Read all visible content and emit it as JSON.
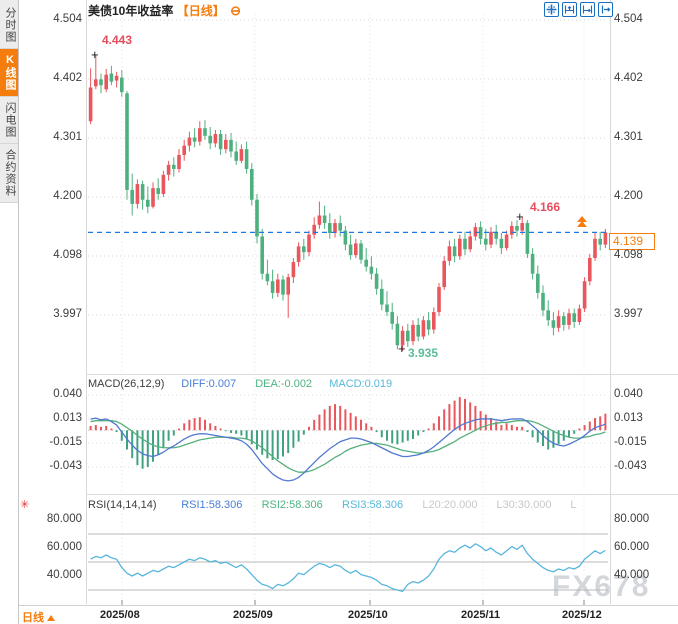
{
  "sidebar": {
    "tabs": [
      {
        "label": "分时图",
        "selected": false
      },
      {
        "label": "K线图",
        "selected": true
      },
      {
        "label": "闪电图",
        "selected": false
      },
      {
        "label": "合约资料",
        "selected": false
      }
    ]
  },
  "header": {
    "title": "美债10年收益率",
    "period_tag": "【日线】",
    "collapse_icon": "⊖"
  },
  "toolbar": {
    "icons": [
      "crosshair",
      "compress-left",
      "compress-right",
      "pan-right"
    ]
  },
  "price_tag": {
    "value": "4.139"
  },
  "annotations": {
    "high_peak": "4.443",
    "recent_high": "4.166",
    "low": "3.935"
  },
  "watermark": "FX678",
  "bottom_bar": {
    "period_label": "日线",
    "months": [
      "2025/08",
      "2025/09",
      "2025/10",
      "2025/11",
      "2025/12"
    ]
  },
  "axes": {
    "main": [
      "4.504",
      "4.402",
      "4.301",
      "4.200",
      "4.098",
      "3.997"
    ],
    "macd": [
      "0.040",
      "0.013",
      "-0.015",
      "-0.043"
    ],
    "rsi": [
      "80.000",
      "60.000",
      "40.000"
    ]
  },
  "legends": {
    "macd": [
      {
        "text": "MACD(26,12,9)",
        "color": "#3c3c3c"
      },
      {
        "text": "DIFF:0.007",
        "color": "#4a7dd4"
      },
      {
        "text": "DEA:-0.002",
        "color": "#4db381"
      },
      {
        "text": "MACD:0.019",
        "color": "#55b9d9"
      }
    ],
    "rsi": [
      {
        "text": "RSI(14,14,14)",
        "color": "#3c3c3c"
      },
      {
        "text": "RSI1:58.306",
        "color": "#4a7dd4"
      },
      {
        "text": "RSI2:58.306",
        "color": "#4db381"
      },
      {
        "text": "RSI3:58.306",
        "color": "#55b9d9"
      },
      {
        "text": "L20:20.000",
        "color": "#c8c8c8"
      },
      {
        "text": "L30:30.000",
        "color": "#c8c8c8"
      },
      {
        "text": "L",
        "color": "#c8c8c8"
      }
    ]
  },
  "colors": {
    "up": "#e8565e",
    "down": "#4eb07e",
    "hist_up": "#e8565e",
    "hist_down": "#3fa182",
    "diff_line": "#5179d0",
    "dea_line": "#55b07c",
    "rsi_line": "#58b6dc",
    "last_price_line": "#1f7ae0",
    "accent": "#f57d0d",
    "toolbar_icon": "#1a6ec0"
  },
  "chart_data": [
    {
      "type": "candlestick",
      "title": "美债10年收益率 日线",
      "x_months": [
        "2025/08",
        "2025/09",
        "2025/10",
        "2025/11",
        "2025/12"
      ],
      "y_ticks": [
        4.504,
        4.402,
        4.301,
        4.2,
        4.098,
        3.997
      ],
      "ylim": [
        3.935,
        4.504
      ],
      "last_price": 4.139,
      "marked_high_1": 4.443,
      "marked_high_2": 4.166,
      "marked_low": 3.935,
      "ohlc": [
        [
          4.33,
          4.421,
          4.325,
          4.388
        ],
        [
          4.39,
          4.443,
          4.385,
          4.402
        ],
        [
          4.402,
          4.412,
          4.378,
          4.392
        ],
        [
          4.385,
          4.42,
          4.38,
          4.41
        ],
        [
          4.412,
          4.425,
          4.392,
          4.398
        ],
        [
          4.4,
          4.415,
          4.388,
          4.408
        ],
        [
          4.405,
          4.418,
          4.372,
          4.38
        ],
        [
          4.378,
          4.382,
          4.195,
          4.212
        ],
        [
          4.212,
          4.24,
          4.168,
          4.188
        ],
        [
          4.188,
          4.23,
          4.18,
          4.222
        ],
        [
          4.222,
          4.228,
          4.178,
          4.195
        ],
        [
          4.195,
          4.218,
          4.172,
          4.183
        ],
        [
          4.183,
          4.225,
          4.18,
          4.215
        ],
        [
          4.215,
          4.232,
          4.195,
          4.205
        ],
        [
          4.205,
          4.245,
          4.2,
          4.238
        ],
        [
          4.238,
          4.262,
          4.228,
          4.255
        ],
        [
          4.255,
          4.268,
          4.235,
          4.248
        ],
        [
          4.248,
          4.282,
          4.242,
          4.272
        ],
        [
          4.272,
          4.298,
          4.262,
          4.288
        ],
        [
          4.288,
          4.312,
          4.278,
          4.302
        ],
        [
          4.302,
          4.318,
          4.285,
          4.295
        ],
        [
          4.295,
          4.33,
          4.288,
          4.318
        ],
        [
          4.318,
          4.332,
          4.298,
          4.305
        ],
        [
          4.305,
          4.32,
          4.282,
          4.292
        ],
        [
          4.292,
          4.315,
          4.285,
          4.308
        ],
        [
          4.308,
          4.315,
          4.272,
          4.282
        ],
        [
          4.282,
          4.308,
          4.275,
          4.298
        ],
        [
          4.298,
          4.31,
          4.268,
          4.278
        ],
        [
          4.278,
          4.295,
          4.255,
          4.262
        ],
        [
          4.262,
          4.29,
          4.258,
          4.282
        ],
        [
          4.282,
          4.295,
          4.24,
          4.248
        ],
        [
          4.248,
          4.258,
          4.185,
          4.195
        ],
        [
          4.195,
          4.205,
          4.12,
          4.132
        ],
        [
          4.132,
          4.145,
          4.058,
          4.068
        ],
        [
          4.068,
          4.092,
          4.048,
          4.055
        ],
        [
          4.055,
          4.075,
          4.025,
          4.035
        ],
        [
          4.035,
          4.068,
          4.028,
          4.058
        ],
        [
          4.058,
          4.065,
          4.022,
          4.032
        ],
        [
          4.032,
          4.068,
          3.992,
          4.062
        ],
        [
          4.062,
          4.095,
          4.052,
          4.088
        ],
        [
          4.088,
          4.122,
          4.08,
          4.115
        ],
        [
          4.115,
          4.128,
          4.092,
          4.105
        ],
        [
          4.105,
          4.142,
          4.098,
          4.135
        ],
        [
          4.135,
          4.165,
          4.128,
          4.152
        ],
        [
          4.152,
          4.192,
          4.145,
          4.168
        ],
        [
          4.168,
          4.185,
          4.145,
          4.155
        ],
        [
          4.155,
          4.172,
          4.128,
          4.138
        ],
        [
          4.138,
          4.162,
          4.13,
          4.155
        ],
        [
          4.155,
          4.168,
          4.132,
          4.142
        ],
        [
          4.142,
          4.15,
          4.108,
          4.118
        ],
        [
          4.118,
          4.135,
          4.092,
          4.1
        ],
        [
          4.1,
          4.128,
          4.095,
          4.12
        ],
        [
          4.12,
          4.126,
          4.085,
          4.092
        ],
        [
          4.092,
          4.112,
          4.072,
          4.08
        ],
        [
          4.08,
          4.098,
          4.058,
          4.068
        ],
        [
          4.068,
          4.078,
          4.032,
          4.042
        ],
        [
          4.042,
          4.058,
          4.005,
          4.015
        ],
        [
          4.015,
          4.038,
          3.995,
          4.002
        ],
        [
          4.002,
          4.018,
          3.972,
          3.982
        ],
        [
          3.982,
          3.995,
          3.938,
          3.945
        ],
        [
          3.945,
          3.978,
          3.935,
          3.97
        ],
        [
          3.97,
          3.982,
          3.942,
          3.952
        ],
        [
          3.952,
          3.988,
          3.945,
          3.98
        ],
        [
          3.98,
          3.992,
          3.952,
          3.96
        ],
        [
          3.96,
          3.995,
          3.955,
          3.988
        ],
        [
          3.988,
          4.002,
          3.962,
          3.972
        ],
        [
          3.972,
          4.01,
          3.965,
          4.002
        ],
        [
          4.002,
          4.052,
          3.995,
          4.045
        ],
        [
          4.045,
          4.098,
          4.04,
          4.09
        ],
        [
          4.09,
          4.125,
          4.082,
          4.115
        ],
        [
          4.115,
          4.128,
          4.088,
          4.098
        ],
        [
          4.098,
          4.135,
          4.092,
          4.128
        ],
        [
          4.128,
          4.14,
          4.1,
          4.11
        ],
        [
          4.11,
          4.142,
          4.105,
          4.132
        ],
        [
          4.132,
          4.155,
          4.125,
          4.148
        ],
        [
          4.148,
          4.158,
          4.118,
          4.128
        ],
        [
          4.128,
          4.145,
          4.108,
          4.118
        ],
        [
          4.118,
          4.148,
          4.112,
          4.14
        ],
        [
          4.14,
          4.152,
          4.118,
          4.128
        ],
        [
          4.128,
          4.138,
          4.102,
          4.112
        ],
        [
          4.112,
          4.142,
          4.108,
          4.135
        ],
        [
          4.135,
          4.158,
          4.128,
          4.15
        ],
        [
          4.15,
          4.16,
          4.132,
          4.142
        ],
        [
          4.142,
          4.166,
          4.135,
          4.155
        ],
        [
          4.155,
          4.16,
          4.095,
          4.102
        ],
        [
          4.102,
          4.112,
          4.058,
          4.068
        ],
        [
          4.068,
          4.082,
          4.025,
          4.035
        ],
        [
          4.035,
          4.048,
          3.995,
          4.005
        ],
        [
          4.005,
          4.022,
          3.978,
          3.988
        ],
        [
          3.988,
          4.002,
          3.962,
          3.975
        ],
        [
          3.975,
          4.005,
          3.968,
          3.995
        ],
        [
          3.995,
          4.002,
          3.97,
          3.98
        ],
        [
          3.98,
          4.008,
          3.972,
          4.0
        ],
        [
          4.0,
          4.008,
          3.975,
          3.985
        ],
        [
          3.985,
          4.015,
          3.98,
          4.008
        ],
        [
          4.008,
          4.062,
          4.002,
          4.055
        ],
        [
          4.055,
          4.102,
          4.048,
          4.095
        ],
        [
          4.095,
          4.138,
          4.09,
          4.128
        ],
        [
          4.128,
          4.14,
          4.108,
          4.118
        ],
        [
          4.118,
          4.145,
          4.112,
          4.139
        ]
      ]
    },
    {
      "type": "bar+line",
      "name": "MACD(26,12,9)",
      "y_ticks": [
        0.04,
        0.013,
        -0.015,
        -0.043
      ],
      "diff": [
        0.013,
        0.014,
        0.012,
        0.013,
        0.01,
        0.006,
        -0.002,
        -0.01,
        -0.017,
        -0.023,
        -0.027,
        -0.029,
        -0.03,
        -0.028,
        -0.025,
        -0.021,
        -0.018,
        -0.014,
        -0.01,
        -0.007,
        -0.005,
        -0.004,
        -0.004,
        -0.005,
        -0.006,
        -0.007,
        -0.008,
        -0.009,
        -0.01,
        -0.012,
        -0.016,
        -0.022,
        -0.03,
        -0.038,
        -0.044,
        -0.05,
        -0.054,
        -0.057,
        -0.058,
        -0.057,
        -0.054,
        -0.049,
        -0.043,
        -0.037,
        -0.031,
        -0.026,
        -0.021,
        -0.017,
        -0.013,
        -0.011,
        -0.009,
        -0.009,
        -0.01,
        -0.012,
        -0.014,
        -0.017,
        -0.02,
        -0.023,
        -0.026,
        -0.028,
        -0.03,
        -0.03,
        -0.029,
        -0.028,
        -0.026,
        -0.023,
        -0.019,
        -0.014,
        -0.009,
        -0.004,
        0.001,
        0.005,
        0.008,
        0.01,
        0.012,
        0.013,
        0.013,
        0.013,
        0.012,
        0.011,
        0.012,
        0.013,
        0.013,
        0.013,
        0.01,
        0.005,
        0.0,
        -0.006,
        -0.011,
        -0.015,
        -0.017,
        -0.018,
        -0.016,
        -0.013,
        -0.01,
        -0.006,
        -0.001,
        0.003,
        0.005,
        0.007
      ],
      "dea": [
        0.01,
        0.011,
        0.011,
        0.011,
        0.011,
        0.01,
        0.007,
        0.003,
        -0.001,
        -0.006,
        -0.01,
        -0.014,
        -0.017,
        -0.019,
        -0.02,
        -0.02,
        -0.02,
        -0.019,
        -0.017,
        -0.015,
        -0.013,
        -0.011,
        -0.01,
        -0.009,
        -0.008,
        -0.008,
        -0.008,
        -0.008,
        -0.009,
        -0.009,
        -0.01,
        -0.012,
        -0.016,
        -0.02,
        -0.025,
        -0.03,
        -0.035,
        -0.039,
        -0.043,
        -0.046,
        -0.048,
        -0.048,
        -0.047,
        -0.045,
        -0.042,
        -0.039,
        -0.035,
        -0.031,
        -0.028,
        -0.024,
        -0.021,
        -0.019,
        -0.017,
        -0.016,
        -0.015,
        -0.015,
        -0.016,
        -0.017,
        -0.019,
        -0.021,
        -0.023,
        -0.024,
        -0.025,
        -0.026,
        -0.026,
        -0.025,
        -0.024,
        -0.022,
        -0.019,
        -0.016,
        -0.013,
        -0.009,
        -0.006,
        -0.003,
        0.0,
        0.003,
        0.005,
        0.007,
        0.008,
        0.009,
        0.009,
        0.01,
        0.011,
        0.011,
        0.011,
        0.01,
        0.008,
        0.005,
        0.002,
        -0.001,
        -0.004,
        -0.006,
        -0.008,
        -0.009,
        -0.009,
        -0.008,
        -0.007,
        -0.005,
        -0.004,
        -0.002
      ],
      "hist": [
        0.005,
        0.006,
        0.004,
        0.005,
        0.002,
        -0.002,
        -0.012,
        -0.022,
        -0.032,
        -0.04,
        -0.044,
        -0.042,
        -0.036,
        -0.028,
        -0.02,
        -0.012,
        -0.006,
        0.002,
        0.008,
        0.012,
        0.014,
        0.015,
        0.012,
        0.008,
        0.005,
        0.002,
        -0.001,
        -0.003,
        -0.004,
        -0.006,
        -0.01,
        -0.016,
        -0.022,
        -0.028,
        -0.032,
        -0.034,
        -0.033,
        -0.03,
        -0.026,
        -0.02,
        -0.013,
        -0.005,
        0.004,
        0.012,
        0.018,
        0.024,
        0.028,
        0.03,
        0.028,
        0.024,
        0.02,
        0.016,
        0.012,
        0.008,
        0.004,
        -0.002,
        -0.008,
        -0.012,
        -0.015,
        -0.016,
        -0.014,
        -0.012,
        -0.01,
        -0.006,
        -0.002,
        0.002,
        0.008,
        0.016,
        0.024,
        0.03,
        0.034,
        0.038,
        0.036,
        0.032,
        0.028,
        0.022,
        0.018,
        0.014,
        0.01,
        0.006,
        0.008,
        0.006,
        0.004,
        0.004,
        -0.002,
        -0.008,
        -0.014,
        -0.018,
        -0.022,
        -0.02,
        -0.016,
        -0.012,
        -0.008,
        -0.004,
        0.002,
        0.006,
        0.01,
        0.014,
        0.016,
        0.019
      ]
    },
    {
      "type": "line",
      "name": "RSI(14,14,14)",
      "y_ticks": [
        80,
        60,
        40
      ],
      "level_lines": [
        70,
        50,
        30
      ],
      "values": [
        52,
        54,
        53,
        55,
        53,
        52,
        46,
        42,
        40,
        42,
        40,
        42,
        44,
        43,
        45,
        47,
        46,
        48,
        50,
        52,
        51,
        53,
        52,
        50,
        51,
        49,
        50,
        48,
        46,
        48,
        45,
        41,
        37,
        34,
        33,
        31,
        34,
        33,
        35,
        38,
        42,
        41,
        44,
        47,
        49,
        48,
        46,
        48,
        47,
        44,
        42,
        44,
        41,
        40,
        39,
        37,
        34,
        33,
        31,
        30,
        29,
        34,
        36,
        35,
        37,
        40,
        45,
        52,
        56,
        58,
        57,
        60,
        62,
        60,
        63,
        61,
        58,
        60,
        57,
        55,
        58,
        61,
        59,
        62,
        56,
        52,
        49,
        46,
        44,
        43,
        45,
        44,
        46,
        45,
        47,
        52,
        55,
        58,
        56,
        58.306
      ]
    }
  ]
}
